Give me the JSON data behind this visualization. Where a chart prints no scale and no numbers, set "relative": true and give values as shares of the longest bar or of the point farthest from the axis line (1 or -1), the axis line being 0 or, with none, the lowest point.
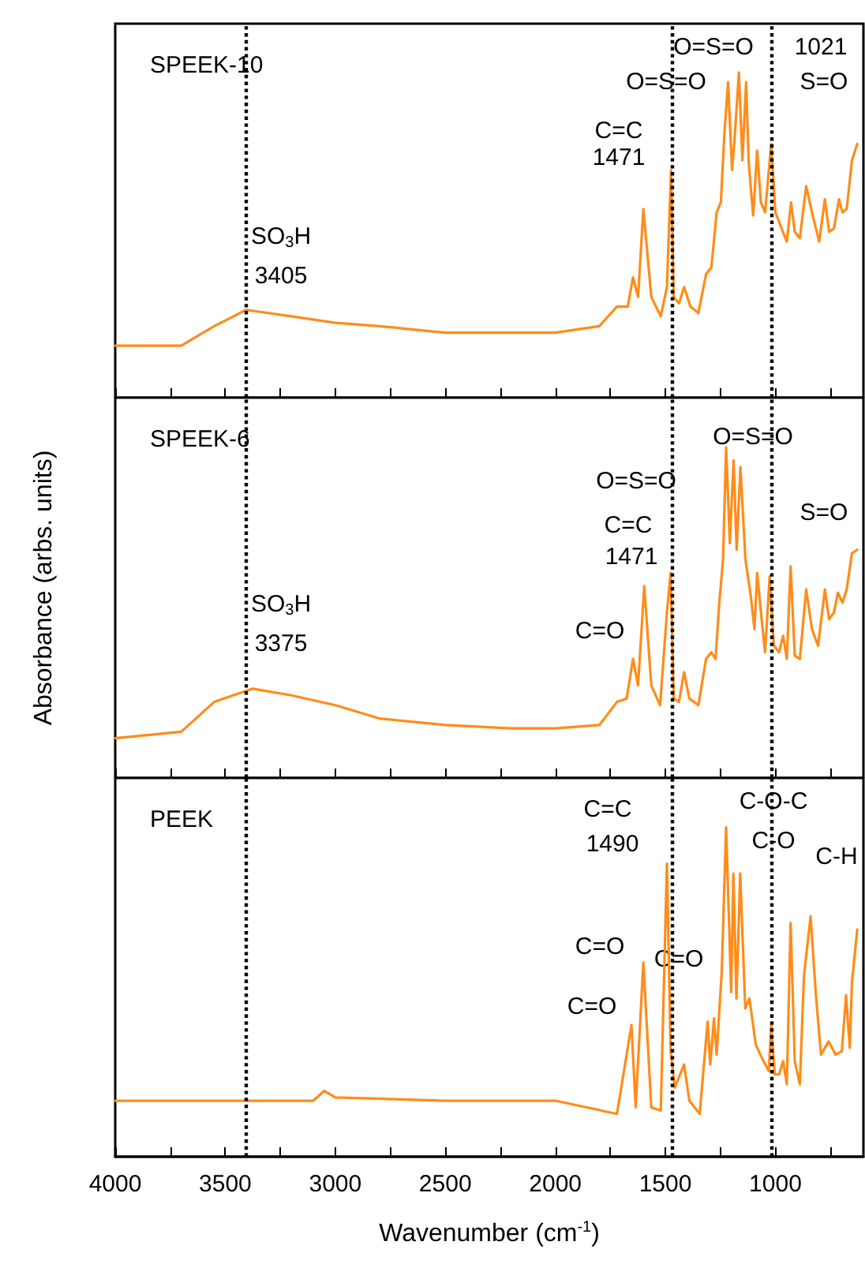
{
  "chart_data": [
    {
      "type": "line",
      "title": "SPEEK-10",
      "relative": true,
      "tick_labels": false,
      "xlim": [
        4000,
        600
      ],
      "xticks": [
        4000,
        {
          "value": 3750,
          "label": null
        },
        3500,
        {
          "value": 3250,
          "label": null
        },
        3000,
        {
          "value": 2750,
          "label": null
        },
        2500,
        {
          "value": 2250,
          "label": null
        },
        2000,
        {
          "value": 1750,
          "label": null
        },
        1500,
        {
          "value": 1250,
          "label": null
        },
        1000,
        {
          "value": 750,
          "label": null
        }
      ],
      "grid": false,
      "x": [
        4000,
        3700,
        3550,
        3405,
        3200,
        3000,
        2800,
        2500,
        2200,
        2000,
        1800,
        1720,
        1671,
        1647,
        1624,
        1600,
        1564,
        1521,
        1493,
        1474,
        1462,
        1438,
        1415,
        1386,
        1350,
        1315,
        1291,
        1267,
        1248,
        1232,
        1215,
        1197,
        1186,
        1166,
        1150,
        1133,
        1121,
        1101,
        1083,
        1066,
        1047,
        1019,
        1000,
        972,
        948,
        929,
        912,
        889,
        860,
        834,
        801,
        775,
        756,
        734,
        711,
        695,
        676,
        652,
        628
      ],
      "series": [
        {
          "color": "#ff8c1a",
          "values": [
            0.16,
            0.16,
            0.22,
            0.27,
            0.25,
            0.23,
            0.22,
            0.2,
            0.2,
            0.2,
            0.22,
            0.28,
            0.28,
            0.37,
            0.31,
            0.58,
            0.31,
            0.25,
            0.34,
            0.7,
            0.31,
            0.29,
            0.34,
            0.28,
            0.26,
            0.38,
            0.4,
            0.57,
            0.6,
            0.81,
            0.97,
            0.7,
            0.79,
            1.0,
            0.73,
            0.97,
            0.72,
            0.56,
            0.76,
            0.6,
            0.57,
            0.78,
            0.57,
            0.52,
            0.48,
            0.6,
            0.51,
            0.49,
            0.65,
            0.57,
            0.48,
            0.61,
            0.51,
            0.52,
            0.61,
            0.57,
            0.58,
            0.73,
            0.78
          ]
        }
      ],
      "ref_lines": [
        {
          "axis": "x",
          "value": 3405,
          "color": "#000000",
          "line_style": "dotted"
        },
        {
          "axis": "x",
          "value": 1471,
          "color": "#000000",
          "line_style": "dotted"
        },
        {
          "axis": "x",
          "value": 1021,
          "color": "#000000",
          "line_style": "dotted"
        }
      ],
      "annotations": [
        "SO$_{3}$H",
        "3405",
        "C=C",
        "1471",
        "O=S=O",
        "O=S=O",
        "1021",
        "S=O"
      ]
    },
    {
      "type": "line",
      "title": "SPEEK-6",
      "ylabel": "Absorbance (arbs. units)",
      "relative": true,
      "tick_labels": false,
      "xlim": [
        4000,
        600
      ],
      "xticks": [
        4000,
        {
          "value": 3750,
          "label": null
        },
        3500,
        {
          "value": 3250,
          "label": null
        },
        3000,
        {
          "value": 2750,
          "label": null
        },
        2500,
        {
          "value": 2250,
          "label": null
        },
        2000,
        {
          "value": 1750,
          "label": null
        },
        1500,
        {
          "value": 1250,
          "label": null
        },
        1000,
        {
          "value": 750,
          "label": null
        }
      ],
      "grid": false,
      "x": [
        4000,
        3700,
        3550,
        3375,
        3200,
        3000,
        2800,
        2500,
        2200,
        2000,
        1800,
        1720,
        1676,
        1647,
        1624,
        1596,
        1564,
        1524,
        1493,
        1476,
        1462,
        1438,
        1415,
        1391,
        1350,
        1315,
        1291,
        1272,
        1255,
        1238,
        1224,
        1207,
        1190,
        1176,
        1159,
        1136,
        1112,
        1095,
        1083,
        1061,
        1047,
        1026,
        1007,
        983,
        965,
        948,
        931,
        912,
        889,
        860,
        834,
        806,
        775,
        756,
        734,
        716,
        695,
        676,
        652,
        628
      ],
      "series": [
        {
          "color": "#ff8c1a",
          "values": [
            0.12,
            0.14,
            0.23,
            0.27,
            0.25,
            0.22,
            0.18,
            0.16,
            0.15,
            0.15,
            0.16,
            0.23,
            0.24,
            0.36,
            0.28,
            0.58,
            0.28,
            0.22,
            0.5,
            0.62,
            0.24,
            0.23,
            0.32,
            0.24,
            0.22,
            0.36,
            0.38,
            0.36,
            0.53,
            0.66,
            1.0,
            0.71,
            0.96,
            0.69,
            0.94,
            0.66,
            0.55,
            0.45,
            0.62,
            0.47,
            0.38,
            0.61,
            0.4,
            0.38,
            0.43,
            0.36,
            0.64,
            0.37,
            0.36,
            0.57,
            0.45,
            0.4,
            0.57,
            0.48,
            0.5,
            0.56,
            0.53,
            0.57,
            0.68,
            0.69
          ]
        }
      ],
      "ref_lines": [
        {
          "axis": "x",
          "value": 3405,
          "color": "#000000",
          "line_style": "dotted"
        },
        {
          "axis": "x",
          "value": 1471,
          "color": "#000000",
          "line_style": "dotted"
        },
        {
          "axis": "x",
          "value": 1021,
          "color": "#000000",
          "line_style": "dotted"
        }
      ],
      "annotations": [
        "SO$_{3}$H",
        "3375",
        "C=O",
        "C=C",
        "1471",
        "O=S=O",
        "O=S=O",
        "S=O"
      ]
    },
    {
      "type": "line",
      "title": "PEEK",
      "xlabel": "Wavenumber (cm$^{-1}$)",
      "relative": true,
      "tick_labels": "x",
      "xlim": [
        4000,
        600
      ],
      "xticks": [
        4000,
        {
          "value": 3750,
          "label": null
        },
        3500,
        {
          "value": 3250,
          "label": null
        },
        3000,
        {
          "value": 2750,
          "label": null
        },
        2500,
        {
          "value": 2250,
          "label": null
        },
        2000,
        {
          "value": 1750,
          "label": null
        },
        1500,
        {
          "value": 1250,
          "label": null
        },
        1000,
        {
          "value": 750,
          "label": null
        }
      ],
      "grid": false,
      "x": [
        4000,
        3500,
        3100,
        3050,
        3000,
        2500,
        2000,
        1720,
        1654,
        1635,
        1600,
        1564,
        1521,
        1493,
        1476,
        1457,
        1415,
        1391,
        1344,
        1308,
        1296,
        1279,
        1267,
        1244,
        1224,
        1201,
        1191,
        1177,
        1160,
        1137,
        1118,
        1089,
        1054,
        1030,
        1019,
        1003,
        983,
        965,
        948,
        931,
        912,
        889,
        870,
        840,
        817,
        793,
        758,
        727,
        698,
        679,
        662,
        652,
        628
      ],
      "series": [
        {
          "color": "#ff8c1a",
          "values": [
            0.17,
            0.17,
            0.17,
            0.2,
            0.18,
            0.17,
            0.17,
            0.13,
            0.4,
            0.15,
            0.59,
            0.15,
            0.14,
            0.89,
            0.32,
            0.21,
            0.28,
            0.17,
            0.13,
            0.41,
            0.28,
            0.42,
            0.31,
            0.56,
            1.0,
            0.5,
            0.86,
            0.48,
            0.86,
            0.45,
            0.48,
            0.34,
            0.29,
            0.26,
            0.4,
            0.25,
            0.25,
            0.29,
            0.22,
            0.71,
            0.29,
            0.22,
            0.55,
            0.73,
            0.5,
            0.31,
            0.35,
            0.31,
            0.32,
            0.49,
            0.33,
            0.53,
            0.69
          ]
        }
      ],
      "ref_lines": [
        {
          "axis": "x",
          "value": 3405,
          "color": "#000000",
          "line_style": "dotted"
        },
        {
          "axis": "x",
          "value": 1471,
          "color": "#000000",
          "line_style": "dotted"
        },
        {
          "axis": "x",
          "value": 1021,
          "color": "#000000",
          "line_style": "dotted"
        }
      ],
      "annotations": [
        "C=C",
        "1490",
        "C=O",
        "C=O",
        "C=O",
        "C-O-C",
        "C-O",
        "C-H"
      ]
    }
  ]
}
